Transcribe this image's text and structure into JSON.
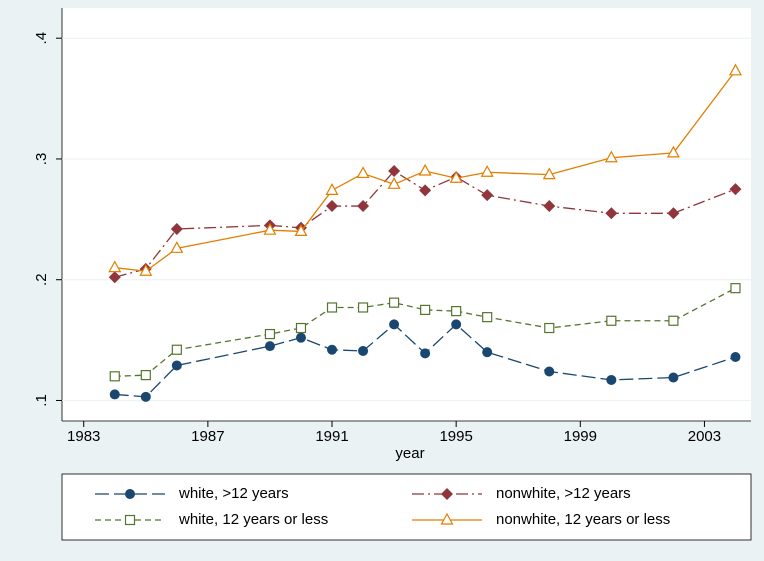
{
  "chart_data": {
    "type": "line",
    "x_label": "year",
    "x": [
      1984,
      1985,
      1986,
      1989,
      1990,
      1991,
      1992,
      1993,
      1994,
      1995,
      1996,
      1998,
      2000,
      2002,
      2004
    ],
    "series": [
      {
        "name": "white, >12 years",
        "color": "#1a476f",
        "marker": "circle",
        "dash": "14 5",
        "values": [
          0.105,
          0.103,
          0.129,
          0.145,
          0.152,
          0.142,
          0.141,
          0.163,
          0.139,
          0.163,
          0.14,
          0.124,
          0.117,
          0.119,
          0.136
        ]
      },
      {
        "name": "nonwhite, >12 years",
        "color": "#90353b",
        "marker": "diamond",
        "dash": "12 4 2 4",
        "values": [
          0.202,
          0.209,
          0.242,
          0.245,
          0.243,
          0.261,
          0.261,
          0.29,
          0.274,
          0.285,
          0.27,
          0.261,
          0.255,
          0.255,
          0.275
        ]
      },
      {
        "name": "white, 12 years or less",
        "color": "#55752f",
        "marker": "square",
        "dash": "6 4",
        "values": [
          0.12,
          0.121,
          0.142,
          0.155,
          0.16,
          0.177,
          0.177,
          0.181,
          0.175,
          0.174,
          0.169,
          0.16,
          0.166,
          0.166,
          0.193
        ]
      },
      {
        "name": "nonwhite, 12 years or less",
        "color": "#e37e00",
        "marker": "triangle",
        "dash": "none",
        "values": [
          0.21,
          0.207,
          0.226,
          0.241,
          0.24,
          0.274,
          0.288,
          0.279,
          0.29,
          0.284,
          0.289,
          0.287,
          0.301,
          0.305,
          0.373
        ]
      }
    ],
    "xlim": [
      1982.3,
      2004.5
    ],
    "xticks": [
      1983,
      1987,
      1991,
      1995,
      1999,
      2003
    ],
    "ylim": [
      0.083,
      0.425
    ],
    "yticks": [
      {
        "value": 0.1,
        "label": ".1"
      },
      {
        "value": 0.2,
        "label": ".2"
      },
      {
        "value": 0.3,
        "label": ".3"
      },
      {
        "value": 0.4,
        "label": ".4"
      }
    ],
    "grid": true,
    "legend": "bottom"
  }
}
